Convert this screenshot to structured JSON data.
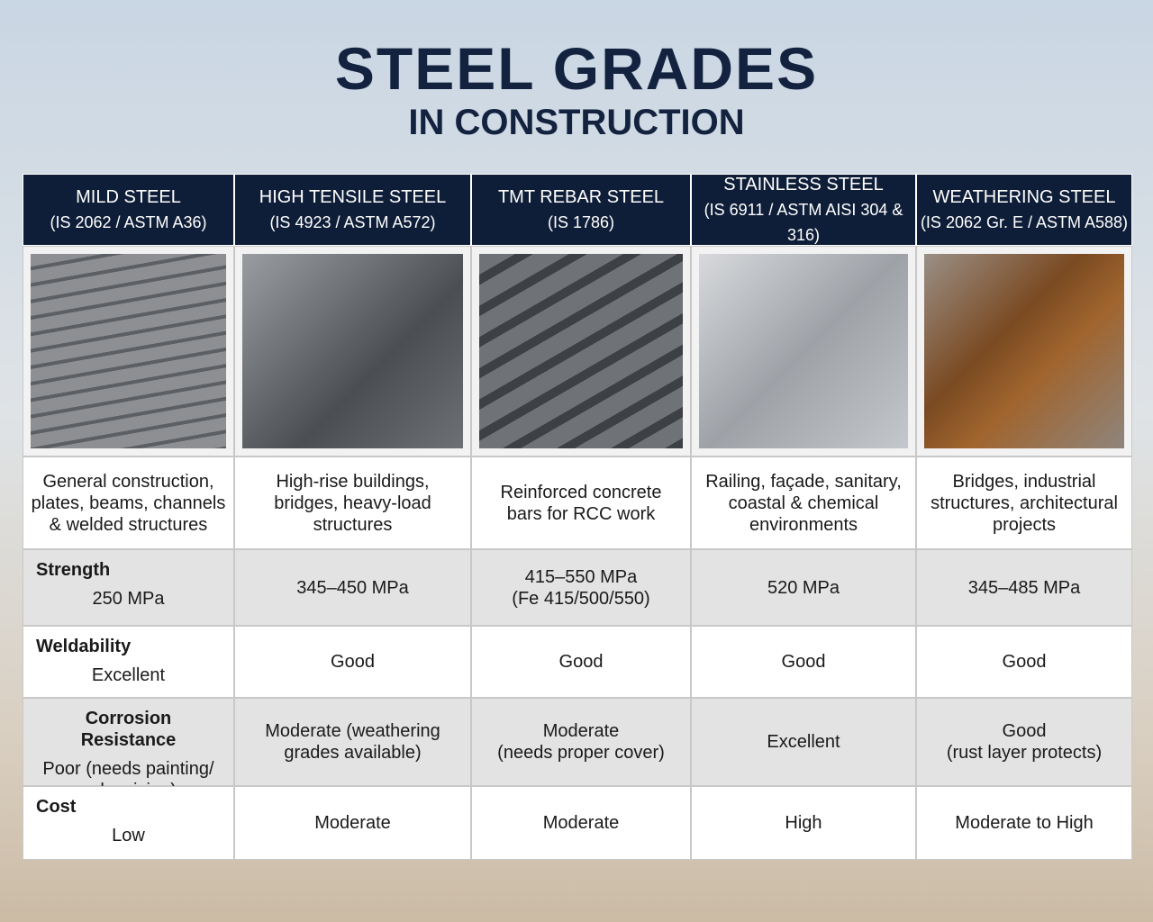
{
  "header": {
    "title": "STEEL GRADES",
    "subtitle": "IN CONSTRUCTION"
  },
  "table": {
    "columns": [
      {
        "name": "MILD STEEL",
        "standard": "(IS 2062 / ASTM A36)"
      },
      {
        "name": "HIGH TENSILE STEEL",
        "standard": "(IS 4923 / ASTM A572)"
      },
      {
        "name": "TMT REBAR STEEL",
        "standard": "(IS 1786)"
      },
      {
        "name": "STAINLESS STEEL",
        "standard": "(IS 6911 / ASTM AISI 304 & 316)"
      },
      {
        "name": "WEATHERING STEEL",
        "standard": "(IS 2062 Gr. E / ASTM A588)"
      }
    ],
    "uses": [
      "General construction,\nplates, beams, channels\n& welded structures",
      "High-rise buildings,\nbridges, heavy-load\nstructures",
      "Reinforced concrete\nbars for RCC work",
      "Railing, façade, sanitary,\ncoastal & chemical\nenvironments",
      "Bridges, industrial\nstructures, architectural\nprojects"
    ],
    "rows": [
      {
        "label": "Strength",
        "values": [
          "250 MPa",
          "345–450 MPa",
          "415–550 MPa\n(Fe 415/500/550)",
          "520 MPa",
          "345–485 MPa"
        ]
      },
      {
        "label": "Weldability",
        "values": [
          "Excellent",
          "Good",
          "Good",
          "Good",
          "Good"
        ]
      },
      {
        "label": "Corrosion Resistance",
        "values": [
          "Poor (needs painting/\ngalvanizing)",
          "Moderate (weathering\ngrades available)",
          "Moderate\n(needs proper cover)",
          "Excellent",
          "Good\n(rust layer protects)"
        ]
      },
      {
        "label": "Cost",
        "values": [
          "Low",
          "Moderate",
          "Moderate",
          "High",
          "Moderate to High"
        ]
      }
    ]
  }
}
